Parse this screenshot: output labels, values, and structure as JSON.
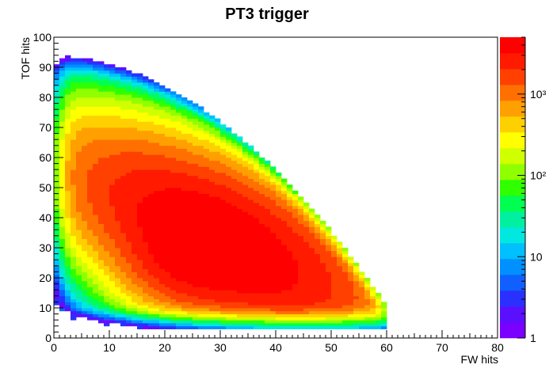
{
  "chart_data": {
    "type": "heatmap",
    "title": "PT3 trigger",
    "xlabel": "FW hits",
    "ylabel": "TOF hits",
    "xlim": [
      0,
      80
    ],
    "ylim": [
      0,
      100
    ],
    "x_ticks": [
      0,
      10,
      20,
      30,
      40,
      50,
      60,
      70,
      80
    ],
    "y_ticks": [
      0,
      10,
      20,
      30,
      40,
      50,
      60,
      70,
      80,
      90,
      100
    ],
    "x_tick_labels": [
      "0",
      "10",
      "20",
      "30",
      "40",
      "50",
      "60",
      "70",
      "80"
    ],
    "y_tick_labels": [
      "0",
      "10",
      "20",
      "30",
      "40",
      "50",
      "60",
      "70",
      "80",
      "90",
      "100"
    ],
    "bin_width": 1,
    "z_scale": "log",
    "zlim": [
      1,
      5000
    ],
    "z_ticks": [
      {
        "value": 1,
        "label": "1"
      },
      {
        "value": 10,
        "label": "10"
      },
      {
        "value": 100,
        "label": "10²"
      },
      {
        "value": 1000,
        "label": "10³"
      }
    ],
    "peak": {
      "x": 25,
      "y": 28
    },
    "grid": false,
    "colorbar": "right",
    "palette": [
      "#7a00ff",
      "#5a10ff",
      "#2a30ff",
      "#1060ff",
      "#0090ff",
      "#00c0ff",
      "#00e8e0",
      "#00f0a0",
      "#00ff50",
      "#30ff00",
      "#90ff00",
      "#d0ff00",
      "#ffff00",
      "#ffd000",
      "#ffa000",
      "#ff7000",
      "#ff4000",
      "#ff1a00",
      "#ff0000"
    ]
  }
}
